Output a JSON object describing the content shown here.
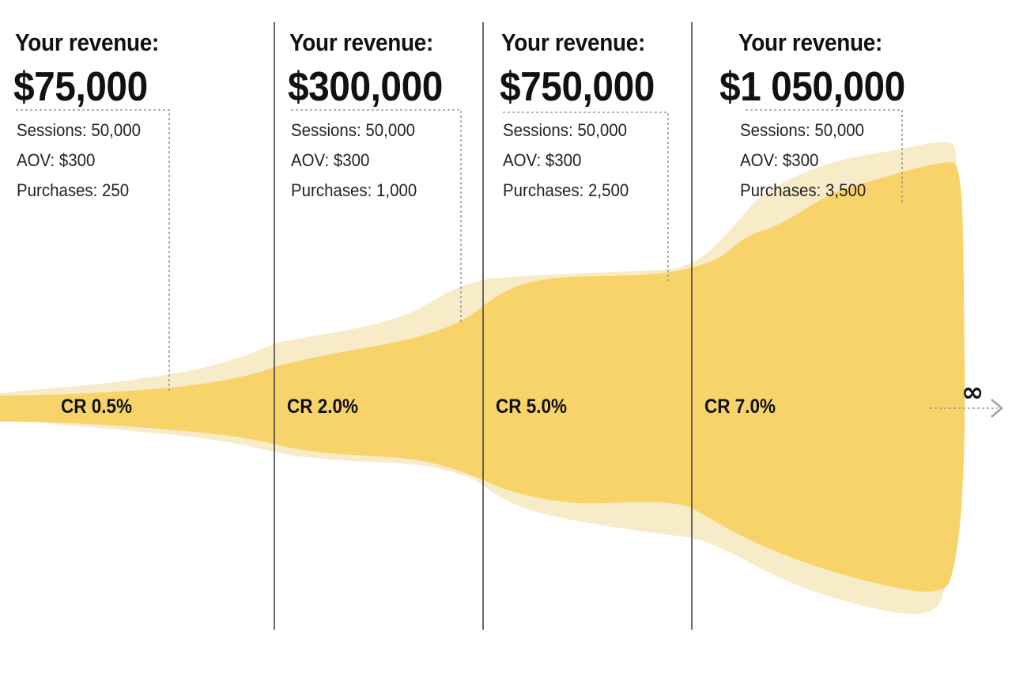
{
  "stages": [
    {
      "revenue_label": "Your revenue:",
      "revenue_value": "$75,000",
      "metrics": [
        "Sessions: 50,000",
        "AOV: $300",
        "Purchases: 250"
      ],
      "cr_label": "CR 0.5%"
    },
    {
      "revenue_label": "Your revenue:",
      "revenue_value": "$300,000",
      "metrics": [
        "Sessions: 50,000",
        "AOV: $300",
        "Purchases: 1,000"
      ],
      "cr_label": "CR 2.0%"
    },
    {
      "revenue_label": "Your revenue:",
      "revenue_value": "$750,000",
      "metrics": [
        "Sessions: 50,000",
        "AOV: $300",
        "Purchases: 2,500"
      ],
      "cr_label": "CR 5.0%"
    },
    {
      "revenue_label": "Your revenue:",
      "revenue_value": "$1 050,000",
      "metrics": [
        "Sessions: 50,000",
        "AOV: $300",
        "Purchases: 3,500"
      ],
      "cr_label": "CR 7.0%"
    }
  ],
  "infinity_symbol": "∞",
  "colors": {
    "funnel_main": "#f7d36a",
    "funnel_shadow": "#f8ebc8",
    "divider": "#444444",
    "leader_line": "#9a9a9a",
    "arrow": "#a0a0a0"
  },
  "icons": {
    "arrow": "chevron-right-arrow-icon"
  }
}
